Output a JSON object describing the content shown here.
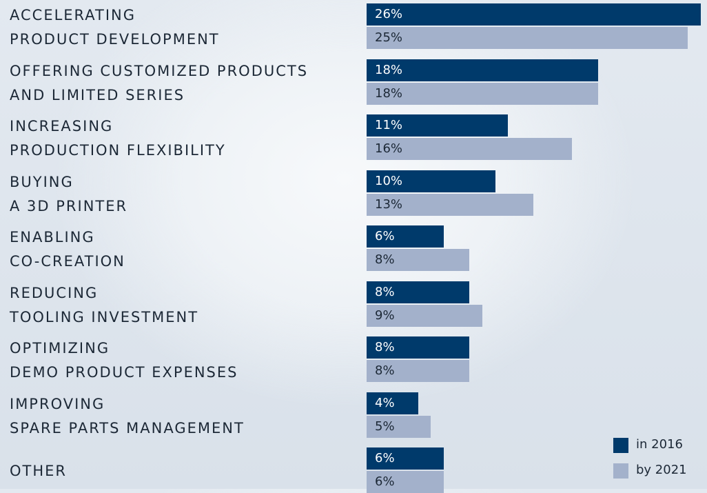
{
  "chart_data": {
    "type": "bar",
    "orientation": "horizontal",
    "categories": [
      "ACCELERATING\nPRODUCT DEVELOPMENT",
      "OFFERING CUSTOMIZED PRODUCTS\nAND LIMITED SERIES",
      "INCREASING\nPRODUCTION FLEXIBILITY",
      "BUYING\nA 3D PRINTER",
      "ENABLING\nCO-CREATION",
      "REDUCING\nTOOLING INVESTMENT",
      "OPTIMIZING\nDEMO PRODUCT EXPENSES",
      "IMPROVING\nSPARE PARTS MANAGEMENT",
      "OTHER"
    ],
    "series": [
      {
        "name": "in 2016",
        "color": "#003a6b",
        "values": [
          26,
          18,
          11,
          10,
          6,
          8,
          8,
          4,
          6
        ],
        "value_labels": [
          "26%",
          "18%",
          "11%",
          "10%",
          "6%",
          "8%",
          "8%",
          "4%",
          "6%"
        ]
      },
      {
        "name": "by 2021",
        "color": "#a3b1cb",
        "values": [
          25,
          18,
          16,
          13,
          8,
          9,
          8,
          5,
          6
        ],
        "value_labels": [
          "25%",
          "18%",
          "16%",
          "13%",
          "8%",
          "9%",
          "8%",
          "5%",
          "6%"
        ]
      }
    ]
  }
}
